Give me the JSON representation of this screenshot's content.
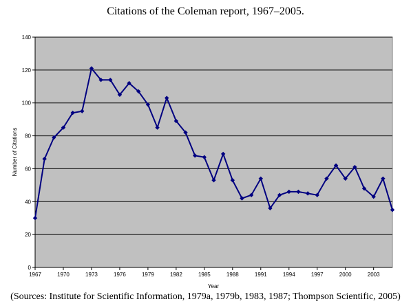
{
  "chart_data": {
    "type": "line",
    "title": "Citations of the Coleman report, 1967–2005.",
    "xlabel": "Year",
    "ylabel": "Number of Citations",
    "source": "(Sources: Institute for Scientific Information, 1979a, 1979b, 1983, 1987; Thompson Scientific, 2005)",
    "ylim": [
      0,
      140
    ],
    "xlim": [
      1967,
      2005
    ],
    "yticks": [
      0,
      20,
      40,
      60,
      80,
      100,
      120,
      140
    ],
    "xticks": [
      1967,
      1970,
      1973,
      1976,
      1979,
      1982,
      1985,
      1988,
      1991,
      1994,
      1997,
      2000,
      2003
    ],
    "grid": "horizontal",
    "plot_background": "#c0c0c0",
    "line_color": "#000080",
    "series": [
      {
        "x": [
          1967,
          1968,
          1969,
          1970,
          1971,
          1972,
          1973,
          1974,
          1975,
          1976,
          1977,
          1978,
          1979,
          1980,
          1981,
          1982,
          1983,
          1984,
          1985,
          1986,
          1987,
          1988,
          1989,
          1990,
          1991,
          1992,
          1993,
          1994,
          1995,
          1996,
          1997,
          1998,
          1999,
          2000,
          2001,
          2002,
          2003,
          2004,
          2005
        ],
        "values": [
          30,
          66,
          79,
          85,
          94,
          95,
          121,
          114,
          114,
          105,
          112,
          107,
          99,
          85,
          103,
          89,
          82,
          68,
          67,
          53,
          69,
          53,
          42,
          44,
          54,
          36,
          44,
          46,
          46,
          45,
          44,
          54,
          62,
          54,
          61,
          48,
          43,
          54,
          35
        ]
      }
    ]
  }
}
